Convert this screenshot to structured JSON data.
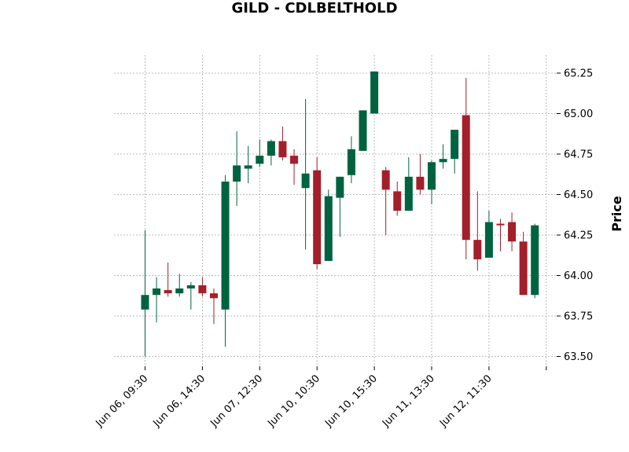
{
  "chart_data": {
    "type": "candlestick",
    "title": "GILD - CDLBELTHOLD",
    "ylabel": "Price",
    "xlabel": "",
    "ylim": [
      63.42,
      65.35
    ],
    "y_ticks": [
      63.5,
      63.75,
      64.0,
      64.25,
      64.5,
      64.75,
      65.0,
      65.25
    ],
    "y_tick_labels": [
      "63.50",
      "63.75",
      "64.00",
      "64.25",
      "64.50",
      "64.75",
      "65.00",
      "65.25"
    ],
    "x_tick_labels": [
      "Jun 06, 09:30",
      "Jun 06, 14:30",
      "Jun 07, 12:30",
      "Jun 10, 10:30",
      "Jun 10, 15:30",
      "Jun 11, 13:30",
      "Jun 12, 11:30",
      ""
    ],
    "x_tick_every": 5,
    "grid": true,
    "y_axis_side": "right",
    "up_color": "#006340",
    "down_color": "#a31f2a",
    "candles": [
      {
        "o": 63.79,
        "h": 64.28,
        "l": 63.5,
        "c": 63.88
      },
      {
        "o": 63.88,
        "h": 63.99,
        "l": 63.71,
        "c": 63.92
      },
      {
        "o": 63.91,
        "h": 64.08,
        "l": 63.87,
        "c": 63.89
      },
      {
        "o": 63.89,
        "h": 64.01,
        "l": 63.87,
        "c": 63.92
      },
      {
        "o": 63.92,
        "h": 63.96,
        "l": 63.79,
        "c": 63.94
      },
      {
        "o": 63.94,
        "h": 63.99,
        "l": 63.87,
        "c": 63.89
      },
      {
        "o": 63.89,
        "h": 63.92,
        "l": 63.7,
        "c": 63.86
      },
      {
        "o": 63.79,
        "h": 64.62,
        "l": 63.56,
        "c": 64.58
      },
      {
        "o": 64.58,
        "h": 64.89,
        "l": 64.43,
        "c": 64.68
      },
      {
        "o": 64.66,
        "h": 64.8,
        "l": 64.57,
        "c": 64.68
      },
      {
        "o": 64.69,
        "h": 64.84,
        "l": 64.67,
        "c": 64.74
      },
      {
        "o": 64.74,
        "h": 64.84,
        "l": 64.68,
        "c": 64.83
      },
      {
        "o": 64.83,
        "h": 64.92,
        "l": 64.71,
        "c": 64.73
      },
      {
        "o": 64.74,
        "h": 64.78,
        "l": 64.56,
        "c": 64.69
      },
      {
        "o": 64.54,
        "h": 65.09,
        "l": 64.16,
        "c": 64.63
      },
      {
        "o": 64.65,
        "h": 64.73,
        "l": 64.04,
        "c": 64.07
      },
      {
        "o": 64.09,
        "h": 64.53,
        "l": 64.09,
        "c": 64.49
      },
      {
        "o": 64.48,
        "h": 64.61,
        "l": 64.24,
        "c": 64.61
      },
      {
        "o": 64.62,
        "h": 64.86,
        "l": 64.57,
        "c": 64.78
      },
      {
        "o": 64.77,
        "h": 65.02,
        "l": 64.77,
        "c": 65.02
      },
      {
        "o": 65.0,
        "h": 65.26,
        "l": 65.0,
        "c": 65.26
      },
      {
        "o": 64.65,
        "h": 64.67,
        "l": 64.25,
        "c": 64.53
      },
      {
        "o": 64.52,
        "h": 64.58,
        "l": 64.37,
        "c": 64.4
      },
      {
        "o": 64.4,
        "h": 64.73,
        "l": 64.4,
        "c": 64.61
      },
      {
        "o": 64.61,
        "h": 64.75,
        "l": 64.5,
        "c": 64.53
      },
      {
        "o": 64.53,
        "h": 64.71,
        "l": 64.44,
        "c": 64.7
      },
      {
        "o": 64.7,
        "h": 64.81,
        "l": 64.66,
        "c": 64.72
      },
      {
        "o": 64.72,
        "h": 64.9,
        "l": 64.63,
        "c": 64.9
      },
      {
        "o": 64.99,
        "h": 65.22,
        "l": 64.1,
        "c": 64.22
      },
      {
        "o": 64.22,
        "h": 64.52,
        "l": 64.03,
        "c": 64.1
      },
      {
        "o": 64.11,
        "h": 64.4,
        "l": 64.11,
        "c": 64.33
      },
      {
        "o": 64.32,
        "h": 64.35,
        "l": 64.15,
        "c": 64.31
      },
      {
        "o": 64.33,
        "h": 64.39,
        "l": 64.15,
        "c": 64.21
      },
      {
        "o": 64.21,
        "h": 64.27,
        "l": 63.88,
        "c": 63.88
      },
      {
        "o": 63.88,
        "h": 64.32,
        "l": 63.86,
        "c": 64.31
      }
    ]
  }
}
